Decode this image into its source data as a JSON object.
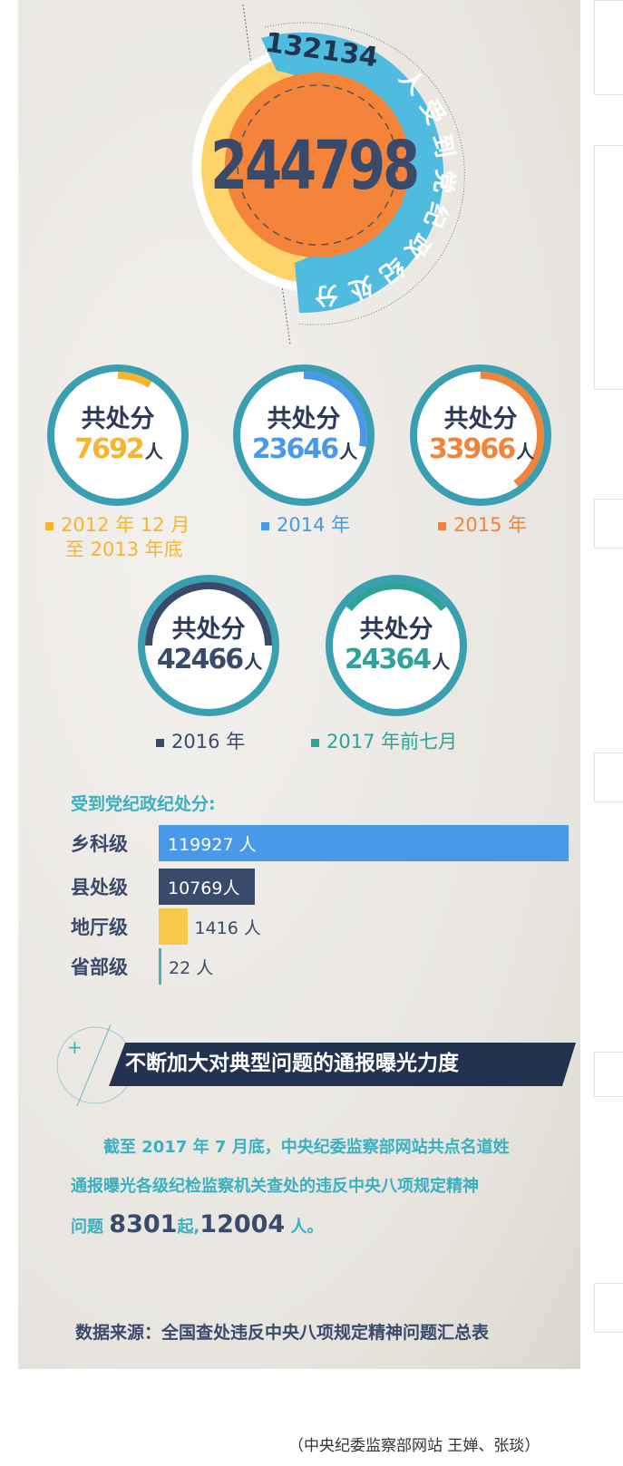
{
  "hero": {
    "total": "244798",
    "arc_text_number": "132134",
    "arc_text": "人受到党纪政纪处分"
  },
  "year_circles": [
    {
      "label_top": "共处分",
      "value": "7692",
      "unit": "人",
      "legend": [
        "2012 年 12 月",
        "至 2013 年底"
      ],
      "color": "#f5b52e",
      "fraction": 0.09
    },
    {
      "label_top": "共处分",
      "value": "23646",
      "unit": "人",
      "legend": [
        "2014 年"
      ],
      "color": "#4a98e8",
      "fraction": 0.28
    },
    {
      "label_top": "共处分",
      "value": "33966",
      "unit": "人",
      "legend": [
        "2015 年"
      ],
      "color": "#f0843a",
      "fraction": 0.4
    },
    {
      "label_top": "共处分",
      "value": "42466",
      "unit": "人",
      "legend": [
        "2016 年"
      ],
      "color": "#3a4a6b",
      "fraction": 0.5
    },
    {
      "label_top": "共处分",
      "value": "24364",
      "unit": "人",
      "legend": [
        "2017 年前七月"
      ],
      "color": "#2fa39a",
      "fraction": 0.29
    }
  ],
  "chart_data": {
    "type": "bar",
    "orientation": "horizontal",
    "title": "受到党纪政纪处分:",
    "categories": [
      "乡科级",
      "县处级",
      "地厅级",
      "省部级"
    ],
    "values": [
      119927,
      10769,
      1416,
      22
    ],
    "value_labels": [
      "119927 人",
      "10769人",
      "1416 人",
      "22 人"
    ],
    "colors": [
      "#4a98e8",
      "#3a4a6b",
      "#f7c948",
      "#4ab0c0"
    ]
  },
  "section": {
    "heading": "不断加大对典型问题的通报曝光力度",
    "para_line1": "截至 2017 年 7 月底，中央纪委监察部网站共点名道姓",
    "para_line2": "通报曝光各级纪检监察机关查处的违反中央八项规定精神",
    "para_pre": "问题",
    "cases": "8301",
    "cases_unit": "起,",
    "people": "12004",
    "people_unit": "人。",
    "source": "数据来源：全国查处违反中央八项规定精神问题汇总表"
  },
  "caption": "（中央纪委监察部网站  王婵、张琰）"
}
